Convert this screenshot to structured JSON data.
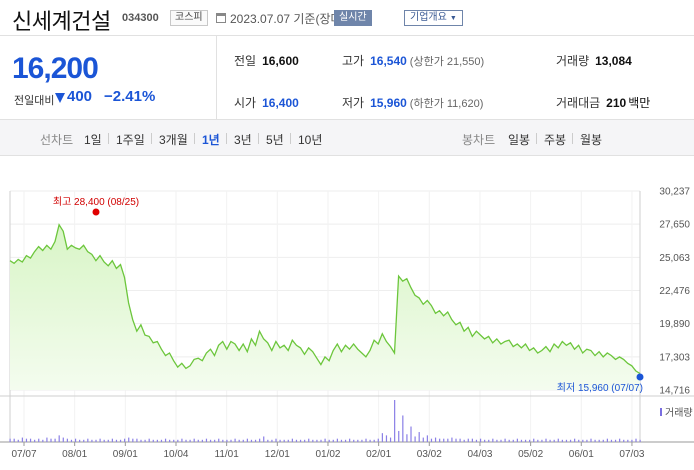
{
  "header": {
    "name": "신세계건설",
    "code": "034300",
    "market": "코스피",
    "date": "2023.07.07 기준(장마감)",
    "realtime_label": "실시간",
    "info_label": "기업개요"
  },
  "summary": {
    "price": "16,200",
    "change_label": "전일대비",
    "change_amount": "400",
    "change_percent": "−2.41%",
    "prev_close": {
      "label": "전일",
      "value": "16,600"
    },
    "open": {
      "label": "시가",
      "value": "16,400"
    },
    "high": {
      "label": "고가",
      "value": "16,540",
      "limit": "(상한가 21,550)"
    },
    "low": {
      "label": "저가",
      "value": "15,960",
      "limit": "(하한가 11,620)"
    },
    "volume": {
      "label": "거래량",
      "value": "13,084"
    },
    "amount": {
      "label": "거래대금",
      "value": "210",
      "unit": "백만"
    }
  },
  "tabs": {
    "line_label": "선차트",
    "periods": [
      "1일",
      "1주일",
      "3개월",
      "1년",
      "3년",
      "5년",
      "10년"
    ],
    "active": "1년",
    "candle_label": "봉차트",
    "candles": [
      "일봉",
      "주봉",
      "월봉"
    ]
  },
  "chart_data": {
    "type": "area",
    "yticks": [
      "30,237",
      "27,650",
      "25,063",
      "22,476",
      "19,890",
      "17,303",
      "14,716"
    ],
    "ylim": [
      14716,
      30237
    ],
    "xticks": [
      "07/07",
      "08/01",
      "09/01",
      "10/04",
      "11/01",
      "12/01",
      "01/02",
      "02/01",
      "03/02",
      "04/03",
      "05/02",
      "06/01",
      "07/03"
    ],
    "high_label": "최고 28,400 (08/25)",
    "low_label": "최저 15,960 (07/07)",
    "volume_label": "거래량",
    "series": [
      {
        "values": [
          24800,
          24600,
          24900,
          24700,
          25200,
          25000,
          25500,
          25900,
          25600,
          26000,
          25700,
          26300,
          27600,
          27100,
          25700,
          26000,
          25800,
          25700,
          26000,
          25500,
          25300,
          24800,
          25200,
          24700,
          24400,
          24800,
          24200,
          24500,
          23500,
          21500,
          20200,
          19300,
          19800,
          19000,
          18900,
          18400,
          18500,
          17900,
          17400,
          17600,
          17000,
          16500,
          16800,
          16400,
          16600,
          17100,
          17200,
          17000,
          17600,
          17900,
          17400,
          18200,
          18500,
          17900,
          18500,
          18300,
          17800,
          18300,
          17700,
          18700,
          18200,
          19300,
          18700,
          18400,
          17800,
          18500,
          18000,
          18200,
          17800,
          18600,
          18200,
          18000,
          17500,
          18000,
          17700,
          17200,
          16700,
          17300,
          17000,
          17800,
          18300,
          17700,
          18200,
          17900,
          18300,
          17900,
          17600,
          17300,
          17800,
          18600,
          18300,
          19100,
          18500,
          18100,
          17600,
          23600,
          23200,
          23400,
          22700,
          22100,
          21900,
          21400,
          21700,
          21300,
          20700,
          20900,
          20500,
          20800,
          20200,
          19800,
          20000,
          19300,
          19600,
          18900,
          19300,
          19000,
          18700,
          18900,
          18400,
          18700,
          18300,
          18500,
          18600,
          18100,
          18300,
          18000,
          18300,
          17800,
          18000,
          17600,
          17800,
          18100,
          17700,
          18300,
          18000,
          18500,
          18200,
          18400,
          17900,
          18200,
          17600,
          17900,
          17800,
          17400,
          17700,
          17300,
          17600,
          17400,
          17100,
          17300,
          17100,
          16800,
          16600,
          16200,
          16000
        ]
      }
    ],
    "volume": [
      3,
      3,
      2,
      4,
      3,
      3,
      2,
      3,
      2,
      4,
      3,
      3,
      6,
      4,
      3,
      2,
      3,
      2,
      2,
      3,
      2,
      2,
      3,
      2,
      2,
      3,
      2,
      2,
      3,
      4,
      3,
      3,
      2,
      2,
      3,
      2,
      2,
      2,
      3,
      2,
      2,
      2,
      3,
      2,
      2,
      3,
      2,
      2,
      3,
      2,
      2,
      3,
      2,
      2,
      2,
      3,
      2,
      2,
      3,
      2,
      2,
      3,
      5,
      2,
      2,
      3,
      2,
      2,
      2,
      3,
      2,
      2,
      2,
      3,
      2,
      2,
      2,
      3,
      2,
      2,
      3,
      2,
      2,
      3,
      2,
      2,
      2,
      3,
      2,
      2,
      3,
      8,
      6,
      4,
      38,
      10,
      24,
      7,
      14,
      5,
      9,
      4,
      6,
      3,
      4,
      3,
      3,
      3,
      4,
      3,
      3,
      2,
      3,
      3,
      2,
      3,
      2,
      2,
      3,
      2,
      2,
      3,
      2,
      2,
      3,
      2,
      2,
      2,
      3,
      2,
      2,
      3,
      2,
      2,
      3,
      2,
      2,
      2,
      3,
      2,
      2,
      2,
      3,
      2,
      2,
      2,
      3,
      2,
      2,
      3,
      2,
      2,
      2,
      3,
      2
    ]
  }
}
